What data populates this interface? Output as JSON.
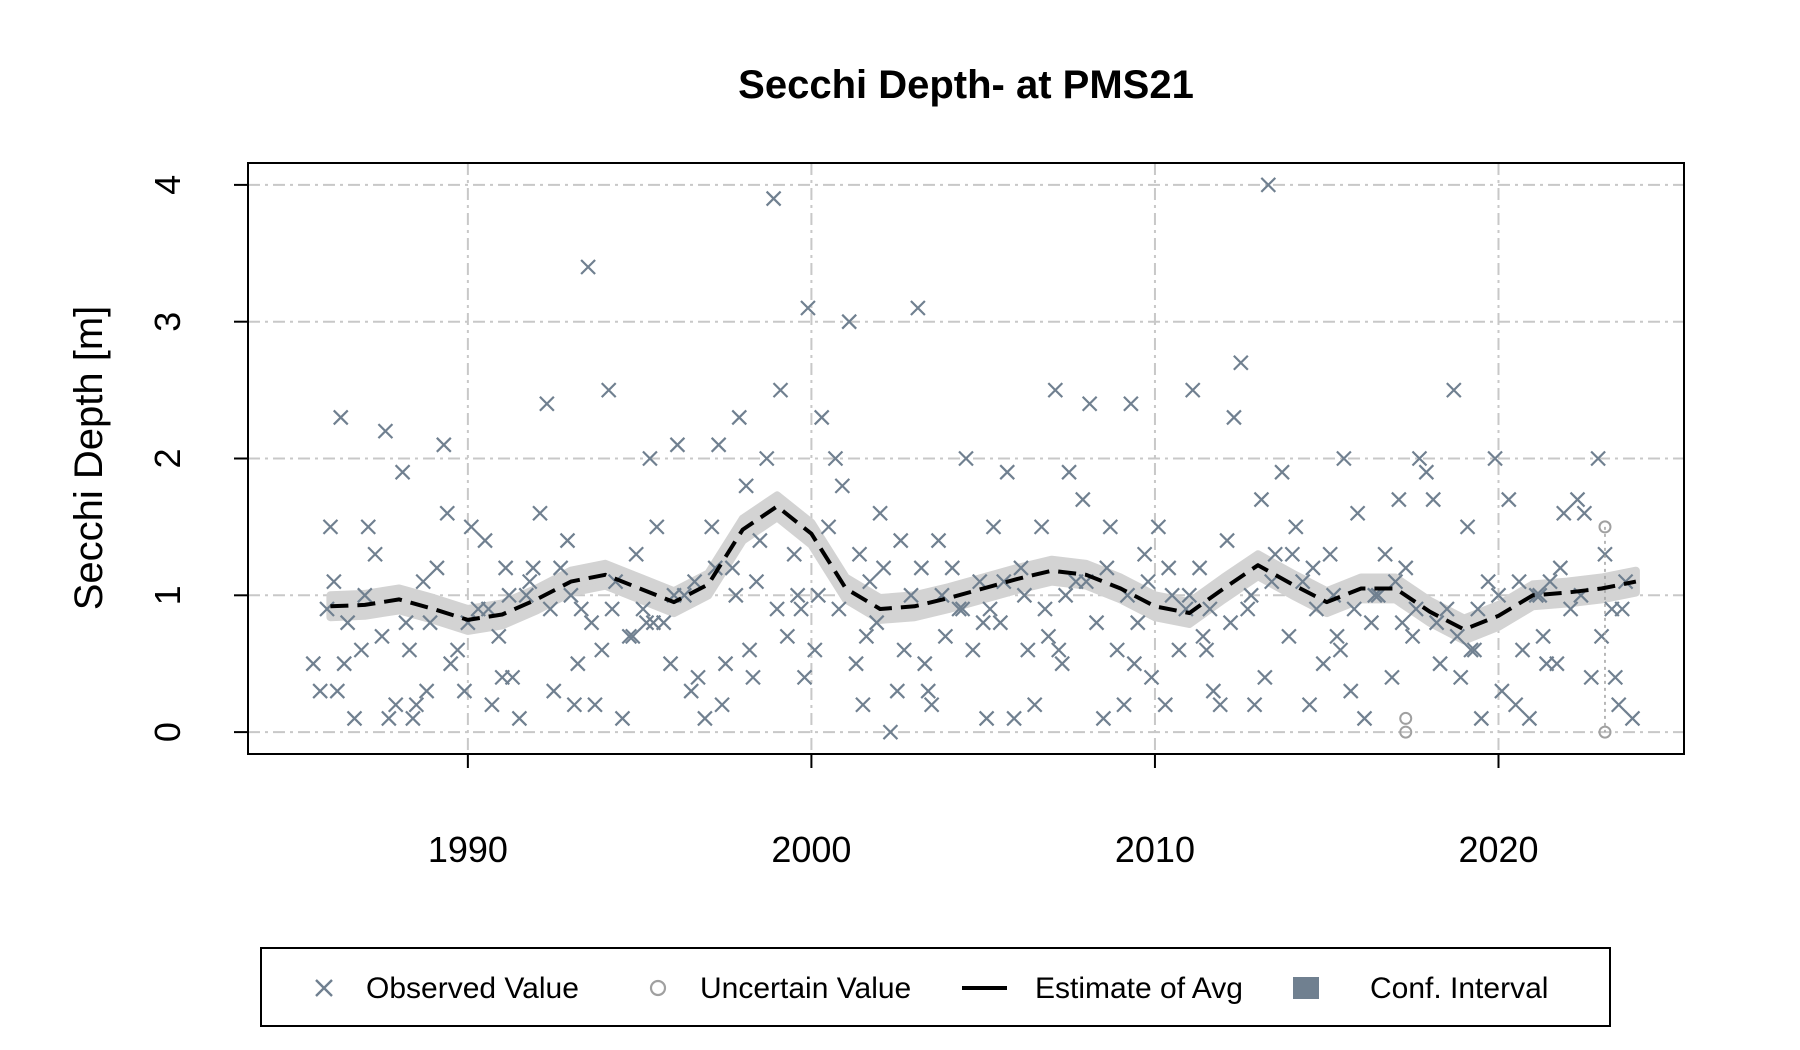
{
  "chart_data": {
    "type": "scatter",
    "title": "Secchi Depth- at PMS21",
    "xlabel": "",
    "ylabel": "Secchi Depth [m]",
    "xlim": [
      1983.6,
      2025.4
    ],
    "ylim": [
      -0.16,
      4.16
    ],
    "x_ticks": [
      1990,
      2000,
      2010,
      2020
    ],
    "y_ticks": [
      0,
      1,
      2,
      3,
      4
    ],
    "grid": true,
    "legend_position": "bottom",
    "colors": {
      "observed": "#708090",
      "uncertain": "#a0a0a0",
      "estimate": "#000000",
      "confidence": "#d3d3d3",
      "legend_conf_swatch": "#708090",
      "grid": "#c8c8c8"
    },
    "legend": [
      {
        "label": "Observed Value",
        "symbol": "x"
      },
      {
        "label": "Uncertain Value",
        "symbol": "circle"
      },
      {
        "label": "Estimate of Avg",
        "symbol": "dashed-line"
      },
      {
        "label": "Conf. Interval",
        "symbol": "square"
      }
    ],
    "estimate": {
      "x": [
        1986,
        1987,
        1988,
        1989,
        1990,
        1991,
        1992,
        1993,
        1994,
        1995,
        1996,
        1997,
        1998,
        1999,
        2000,
        2001,
        2002,
        2003,
        2004,
        2005,
        2006,
        2007,
        2008,
        2009,
        2010,
        2011,
        2012,
        2013,
        2014,
        2015,
        2016,
        2017,
        2018,
        2019,
        2020,
        2021,
        2022,
        2023,
        2024
      ],
      "y": [
        0.92,
        0.93,
        0.97,
        0.9,
        0.82,
        0.86,
        0.97,
        1.1,
        1.15,
        1.05,
        0.95,
        1.08,
        1.48,
        1.65,
        1.45,
        1.05,
        0.9,
        0.92,
        0.98,
        1.05,
        1.12,
        1.18,
        1.15,
        1.05,
        0.92,
        0.87,
        1.05,
        1.22,
        1.08,
        0.95,
        1.05,
        1.05,
        0.88,
        0.75,
        0.85,
        1.0,
        1.02,
        1.05,
        1.1
      ]
    },
    "conf_halfwidth": 0.08,
    "observed": {
      "x": [
        1985.5,
        1985.7,
        1985.9,
        1986.1,
        1986.3,
        1986.5,
        1986.7,
        1986.9,
        1987.1,
        1987.3,
        1987.5,
        1987.7,
        1987.9,
        1988.1,
        1988.3,
        1988.5,
        1988.7,
        1988.9,
        1989.1,
        1989.3,
        1989.5,
        1989.7,
        1989.9,
        1990.1,
        1990.3,
        1990.5,
        1990.7,
        1990.9,
        1991.1,
        1991.3,
        1991.5,
        1991.7,
        1991.9,
        1992.1,
        1992.3,
        1992.5,
        1992.7,
        1992.9,
        1993.1,
        1993.3,
        1993.5,
        1993.7,
        1993.9,
        1994.1,
        1994.3,
        1994.5,
        1994.7,
        1994.9,
        1995.1,
        1995.3,
        1995.5,
        1995.7,
        1995.9,
        1996.1,
        1996.3,
        1996.5,
        1996.7,
        1996.9,
        1997.1,
        1997.3,
        1997.5,
        1997.7,
        1997.9,
        1998.1,
        1998.3,
        1998.5,
        1998.7,
        1998.9,
        1999.1,
        1999.3,
        1999.5,
        1999.7,
        1999.9,
        2000.1,
        2000.3,
        2000.5,
        2000.7,
        2000.9,
        2001.1,
        2001.3,
        2001.5,
        2001.7,
        2001.9,
        2002.1,
        2002.3,
        2002.5,
        2002.7,
        2002.9,
        2003.1,
        2003.3,
        2003.5,
        2003.7,
        2003.9,
        2004.1,
        2004.3,
        2004.5,
        2004.7,
        2004.9,
        2005.1,
        2005.3,
        2005.5,
        2005.7,
        2005.9,
        2006.1,
        2006.3,
        2006.5,
        2006.7,
        2006.9,
        2007.1,
        2007.3,
        2007.5,
        2007.7,
        2007.9,
        2008.1,
        2008.3,
        2008.5,
        2008.7,
        2008.9,
        2009.1,
        2009.3,
        2009.5,
        2009.7,
        2009.9,
        2010.1,
        2010.3,
        2010.5,
        2010.7,
        2010.9,
        2011.1,
        2011.3,
        2011.5,
        2011.7,
        2011.9,
        2012.1,
        2012.3,
        2012.5,
        2012.7,
        2012.9,
        2013.1,
        2013.3,
        2013.5,
        2013.7,
        2013.9,
        2014.1,
        2014.3,
        2014.5,
        2014.7,
        2014.9,
        2015.1,
        2015.3,
        2015.5,
        2015.7,
        2015.9,
        2016.1,
        2016.3,
        2016.5,
        2016.7,
        2016.9,
        2017.1,
        2017.3,
        2017.5,
        2017.7,
        2017.9,
        2018.1,
        2018.3,
        2018.5,
        2018.7,
        2018.9,
        2019.1,
        2019.3,
        2019.5,
        2019.7,
        2019.9,
        2020.1,
        2020.3,
        2020.5,
        2020.7,
        2020.9,
        2021.1,
        2021.3,
        2021.5,
        2021.7,
        2021.9,
        2022.1,
        2022.3,
        2022.5,
        2022.7,
        2022.9,
        2023.1,
        2023.3,
        2023.5,
        2023.7,
        2023.9,
        1986.0,
        1986.4,
        1987.0,
        1987.6,
        1988.2,
        1988.8,
        1989.4,
        1990.0,
        1990.6,
        1991.2,
        1991.8,
        1992.4,
        1993.0,
        1993.6,
        1994.2,
        1994.8,
        1995.4,
        1996.0,
        1996.6,
        1997.2,
        1997.8,
        1998.4,
        1999.0,
        1999.6,
        2000.2,
        2000.8,
        2001.4,
        2002.0,
        2002.6,
        2003.2,
        2003.8,
        2004.4,
        2005.0,
        2005.6,
        2006.2,
        2006.8,
        2007.4,
        2008.0,
        2008.6,
        2009.2,
        2009.8,
        2010.4,
        2011.0,
        2011.6,
        2012.2,
        2012.8,
        2013.4,
        2014.0,
        2014.6,
        2015.2,
        2015.8,
        2016.4,
        2017.0,
        2017.6,
        2018.2,
        2018.8,
        2019.4,
        2020.0,
        2020.6,
        2021.2,
        2021.8,
        2022.4,
        2023.0,
        2023.6,
        1986.2,
        1988.4,
        1991.0,
        1993.2,
        1995.2,
        1997.4,
        1998.2,
        1999.8,
        2001.6,
        2003.4,
        2005.2,
        2007.2,
        2009.4,
        2011.4,
        2013.2,
        2015.4,
        2017.2,
        2019.2,
        2021.4,
        2023.4
      ],
      "y": [
        0.5,
        0.3,
        0.9,
        1.1,
        2.3,
        0.8,
        0.1,
        0.6,
        1.5,
        1.3,
        0.7,
        0.1,
        0.2,
        1.9,
        0.6,
        0.2,
        1.1,
        0.8,
        1.2,
        2.1,
        0.5,
        0.6,
        0.3,
        1.5,
        0.9,
        1.4,
        0.2,
        0.7,
        1.2,
        0.4,
        0.1,
        1.0,
        1.2,
        1.6,
        2.4,
        0.3,
        1.2,
        1.4,
        0.2,
        0.9,
        3.4,
        0.2,
        0.6,
        2.5,
        1.1,
        0.1,
        0.7,
        1.3,
        0.9,
        2.0,
        1.5,
        0.8,
        0.5,
        2.1,
        1.0,
        0.3,
        0.4,
        0.1,
        1.5,
        2.1,
        0.5,
        1.2,
        2.3,
        1.8,
        0.4,
        1.4,
        2.0,
        3.9,
        2.5,
        0.7,
        1.3,
        0.9,
        3.1,
        0.6,
        2.3,
        1.5,
        2.0,
        1.8,
        3.0,
        0.5,
        0.2,
        1.1,
        0.8,
        1.2,
        0.0,
        0.3,
        0.6,
        1.0,
        3.1,
        0.5,
        0.2,
        1.4,
        0.7,
        1.2,
        0.9,
        2.0,
        0.6,
        1.1,
        0.1,
        1.5,
        0.8,
        1.9,
        0.1,
        1.2,
        0.6,
        0.2,
        1.5,
        0.7,
        2.5,
        0.5,
        1.9,
        1.1,
        1.7,
        2.4,
        0.8,
        0.1,
        1.5,
        0.6,
        0.2,
        2.4,
        0.8,
        1.3,
        0.4,
        1.5,
        0.2,
        1.0,
        0.6,
        0.9,
        2.5,
        1.2,
        0.6,
        0.3,
        0.2,
        1.4,
        2.3,
        2.7,
        0.9,
        0.2,
        1.7,
        4.0,
        1.3,
        1.9,
        0.7,
        1.5,
        1.1,
        0.2,
        0.9,
        0.5,
        1.3,
        0.7,
        2.0,
        0.3,
        1.6,
        0.1,
        0.8,
        1.0,
        1.3,
        0.4,
        1.7,
        1.2,
        0.7,
        2.0,
        1.9,
        1.7,
        0.5,
        0.9,
        2.5,
        0.4,
        1.5,
        0.6,
        0.1,
        1.1,
        2.0,
        0.3,
        1.7,
        0.2,
        0.6,
        0.1,
        1.0,
        0.7,
        1.1,
        0.5,
        1.6,
        0.9,
        1.7,
        1.6,
        0.4,
        2.0,
        1.3,
        0.9,
        0.2,
        1.1,
        0.1,
        1.5,
        0.5,
        1.0,
        2.2,
        0.8,
        0.3,
        1.6,
        0.8,
        0.9,
        1.0,
        1.1,
        0.9,
        1.0,
        0.8,
        0.9,
        0.7,
        0.8,
        1.0,
        1.1,
        1.2,
        1.0,
        1.1,
        0.9,
        1.0,
        1.0,
        0.9,
        1.3,
        1.6,
        1.4,
        1.2,
        1.0,
        0.9,
        0.8,
        1.1,
        1.0,
        0.9,
        1.0,
        1.1,
        1.2,
        1.0,
        1.1,
        1.2,
        1.0,
        0.9,
        0.8,
        1.0,
        1.1,
        1.3,
        1.2,
        1.0,
        0.9,
        1.0,
        1.1,
        0.9,
        0.8,
        0.7,
        0.9,
        1.0,
        1.1,
        1.0,
        1.2,
        1.0,
        0.7,
        0.9,
        0.3,
        0.1,
        0.4,
        0.5,
        0.8,
        0.2,
        0.6,
        0.4,
        0.7,
        0.3,
        0.9,
        0.6,
        0.5,
        0.7,
        0.4,
        0.6,
        0.8,
        0.6,
        0.5,
        0.4
      ]
    },
    "uncertain": {
      "x": [
        2017.3,
        2017.3,
        2023.1,
        2023.1
      ],
      "y": [
        0.1,
        0.0,
        0.0,
        1.5
      ]
    }
  }
}
